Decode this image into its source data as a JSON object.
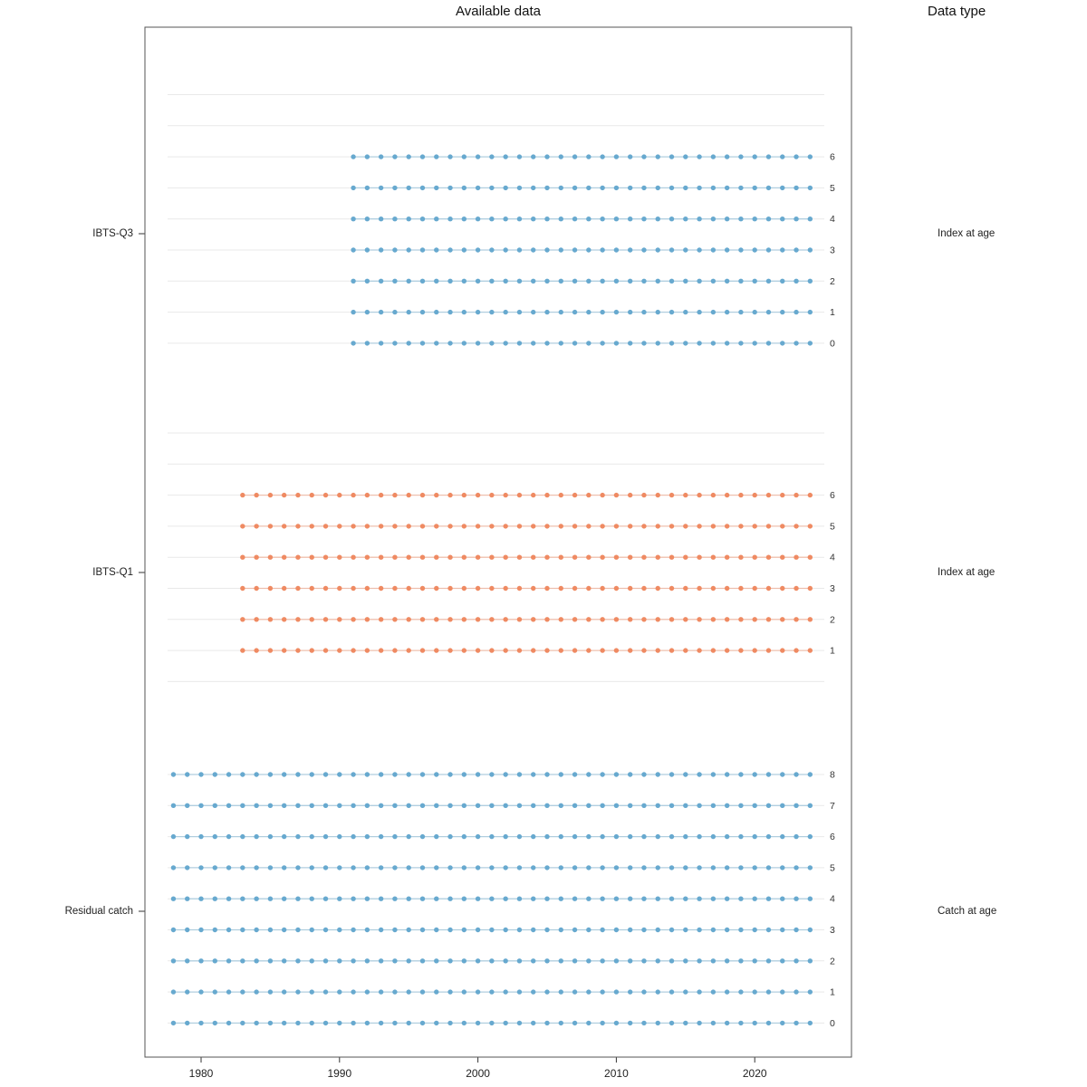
{
  "title": "Available data",
  "right_header": "Data type",
  "x_axis": {
    "ticks": [
      "1980",
      "1990",
      "2000",
      "2010",
      "2020"
    ],
    "tick_years": [
      1980,
      1990,
      2000,
      2010,
      2020
    ]
  },
  "chart_data": {
    "type": "scatter",
    "title": "Available data",
    "description": "Data availability by year and age for each fleet; one dot per year with data",
    "x_range": [
      1978,
      2024
    ],
    "age_range": [
      0,
      8
    ],
    "grid": true,
    "legend": "none",
    "panels": [
      {
        "name": "IBTS-Q3",
        "data_type": "Index at age",
        "color": "#67A9CF",
        "ages": [
          0,
          1,
          2,
          3,
          4,
          5,
          6
        ],
        "year_start": 1991,
        "year_end": 2024
      },
      {
        "name": "IBTS-Q1",
        "data_type": "Index at age",
        "color": "#EF8A62",
        "ages": [
          1,
          2,
          3,
          4,
          5,
          6
        ],
        "year_start": 1983,
        "year_end": 2024
      },
      {
        "name": "Residual catch",
        "data_type": "Catch at age",
        "color": "#67A9CF",
        "ages": [
          0,
          1,
          2,
          3,
          4,
          5,
          6,
          7,
          8
        ],
        "year_start": 1978,
        "year_end": 2024
      }
    ]
  }
}
